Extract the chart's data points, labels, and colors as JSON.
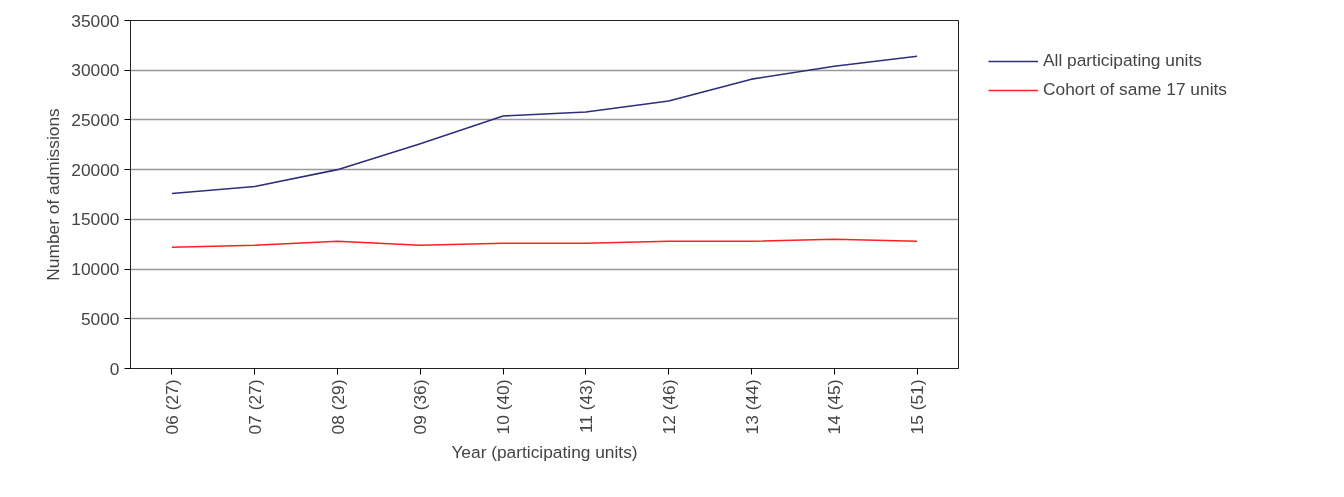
{
  "chart_data": {
    "type": "line",
    "xlabel": "Year (participating units)",
    "ylabel": "Number of admissions",
    "categories": [
      "06 (27)",
      "07 (27)",
      "08 (29)",
      "09 (36)",
      "10 (40)",
      "11 (43)",
      "12 (46)",
      "13 (44)",
      "14 (45)",
      "15 (51)"
    ],
    "series": [
      {
        "name": "All participating units",
        "color": "#2e2e7a",
        "values": [
          17600,
          18300,
          20000,
          22600,
          25400,
          25800,
          26900,
          29100,
          30400,
          31400
        ]
      },
      {
        "name": "Cohort of same 17 units",
        "color": "#ff2020",
        "values": [
          12200,
          12400,
          12800,
          12400,
          12600,
          12600,
          12800,
          12800,
          13000,
          12800
        ]
      }
    ],
    "ylim": [
      0,
      35000
    ],
    "yticks": [
      0,
      5000,
      10000,
      15000,
      20000,
      25000,
      30000,
      35000
    ],
    "grid": "y",
    "legend": "right",
    "marker": "none",
    "line_style": "solid"
  }
}
